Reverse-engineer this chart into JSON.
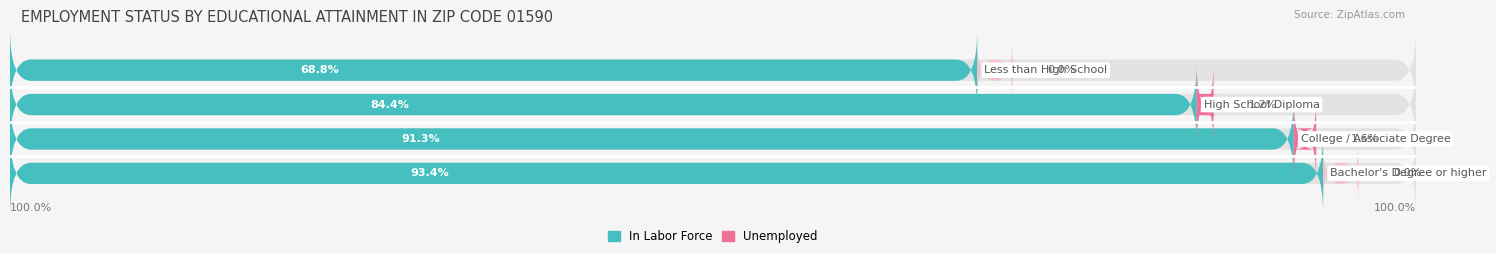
{
  "title": "EMPLOYMENT STATUS BY EDUCATIONAL ATTAINMENT IN ZIP CODE 01590",
  "source": "Source: ZipAtlas.com",
  "categories": [
    "Less than High School",
    "High School Diploma",
    "College / Associate Degree",
    "Bachelor's Degree or higher"
  ],
  "labor_force_pct": [
    68.8,
    84.4,
    91.3,
    93.4
  ],
  "unemployed_pct": [
    0.0,
    1.2,
    1.6,
    0.0
  ],
  "max_pct": 100.0,
  "left_label": "100.0%",
  "right_label": "100.0%",
  "color_labor": "#45bfbf",
  "color_unemployed": "#f07097",
  "color_bar_bg": "#e2e2e2",
  "background_color": "#f5f5f5",
  "bar_height": 0.62,
  "title_fontsize": 10.5,
  "label_fontsize": 8.0,
  "tick_fontsize": 8.0,
  "legend_fontsize": 8.5
}
